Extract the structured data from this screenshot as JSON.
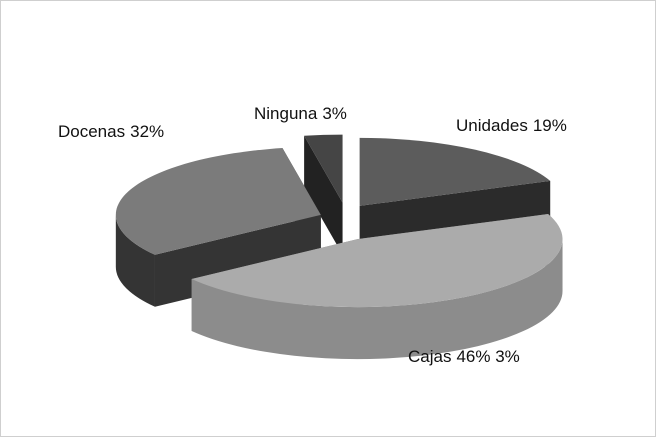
{
  "chart_data": {
    "type": "pie",
    "categories": [
      "Unidades",
      "Cajas",
      "Docenas",
      "Ninguna"
    ],
    "values": [
      19,
      46,
      32,
      3
    ],
    "value_labels": [
      "19%",
      "46% 3%",
      "32%",
      "3%"
    ],
    "colors": [
      "#5c5c5c",
      "#ababab",
      "#7b7b7b",
      "#454545"
    ],
    "side_colors": [
      "#2b2b2b",
      "#8c8c8c",
      "#343434",
      "#222222"
    ]
  }
}
